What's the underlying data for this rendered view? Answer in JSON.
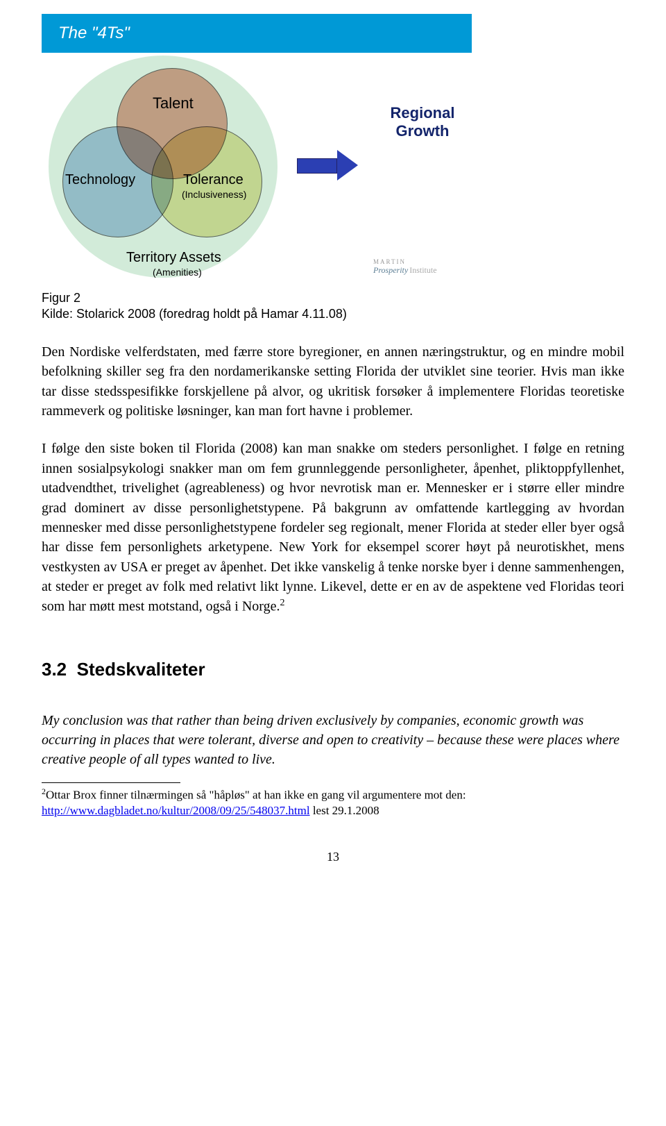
{
  "diagram": {
    "title": "The \"4Ts\"",
    "venn": {
      "background_circle_color": "rgba(160,213,175,0.48)",
      "circles": {
        "talent": {
          "label": "Talent",
          "fill": "rgba(216,119,91,0.62)"
        },
        "technology": {
          "label": "Technology",
          "fill": "rgba(122,167,217,0.58)"
        },
        "tolerance": {
          "label": "Tolerance",
          "sublabel": "(Inclusiveness)",
          "fill": "rgba(222,217,117,0.62)"
        }
      },
      "territory_label": "Territory Assets",
      "territory_sublabel": "(Amenities)"
    },
    "arrow_color": "#2b3fb3",
    "output_label_line1": "Regional",
    "output_label_line2": "Growth",
    "output_label_color": "#13246b",
    "logo": {
      "line1": "MARTIN",
      "line2a": "Prosperity",
      "line2b": "Institute"
    }
  },
  "figure_caption_line1": "Figur 2",
  "figure_caption_line2": "Kilde: Stolarick 2008 (foredrag holdt på Hamar 4.11.08)",
  "paragraph1": "Den Nordiske velferdstaten, med færre store byregioner, en annen næringstruktur, og en mindre mobil befolkning skiller seg fra den nordamerikanske setting Florida der utviklet sine teorier. Hvis man ikke tar disse stedsspesifikke forskjellene på alvor, og ukritisk forsøker å implementere Floridas teoretiske rammeverk og politiske løsninger, kan man fort havne i problemer.",
  "paragraph2_a": "I følge den siste boken til Florida (2008) kan man snakke om steders personlighet. I følge en retning innen sosialpsykologi snakker man om fem grunnleggende personligheter, åpenhet, pliktoppfyllenhet, utadvendthet, trivelighet (agreableness) og hvor nevrotisk man er. Mennesker er i større eller mindre grad dominert av disse personlighetstypene. På bakgrunn av omfattende kartlegging av hvordan mennesker med disse personlighetstypene fordeler seg regionalt, mener Florida at steder eller byer også har disse fem personlighets arketypene. New York for eksempel scorer høyt på neurotiskhet, mens vestkysten av USA er preget av åpenhet. Det ikke vanskelig å tenke norske byer i denne sammenhengen, at steder er preget av folk med relativt likt lynne. Likevel, dette er en av de aspektene ved Floridas teori som har møtt mest motstand, også i Norge.",
  "paragraph2_sup": "2",
  "section_number": "3.2",
  "section_title": "Stedskvaliteter",
  "quote": "My conclusion was that rather than being driven exclusively by companies, economic growth was occurring in places that were tolerant, diverse and open to creativity – because these were places where creative people of all types wanted to live.",
  "footnote_sup": "2",
  "footnote_text_a": "Ottar Brox finner tilnærmingen så \"håpløs\" at han ikke en gang vil argumentere mot den: ",
  "footnote_link": "http://www.dagbladet.no/kultur/2008/09/25/548037.html",
  "footnote_text_b": " lest 29.1.2008",
  "page_number": "13",
  "style": {
    "title_bar_bg": "#0099d6",
    "body_bg": "#ffffff",
    "body_font_size_pt": 15,
    "heading_font_family": "Arial",
    "body_font_family": "Times New Roman"
  }
}
